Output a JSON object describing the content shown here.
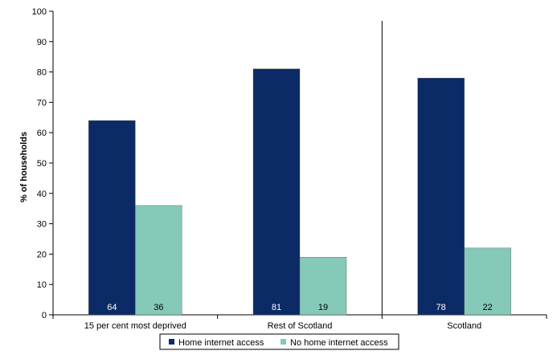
{
  "chart_data": {
    "type": "bar",
    "categories": [
      "15 per cent most deprived",
      "Rest of Scotland",
      "Scotland"
    ],
    "series": [
      {
        "name": "Home internet access",
        "values": [
          64,
          81,
          78
        ],
        "labels": [
          "64",
          "81",
          "78"
        ],
        "color": "#0b2a66"
      },
      {
        "name": "No home internet access",
        "values": [
          36,
          19,
          22
        ],
        "labels": [
          "36",
          "19",
          "22"
        ],
        "color": "#85c9b8"
      }
    ],
    "ylabel": "% of households",
    "ylim": [
      0,
      100
    ],
    "yticks": [
      "0",
      "10",
      "20",
      "30",
      "40",
      "50",
      "60",
      "70",
      "80",
      "90",
      "100"
    ],
    "grid": false,
    "separator_between_categories": [
      2,
      3
    ],
    "legend_position": "bottom"
  }
}
